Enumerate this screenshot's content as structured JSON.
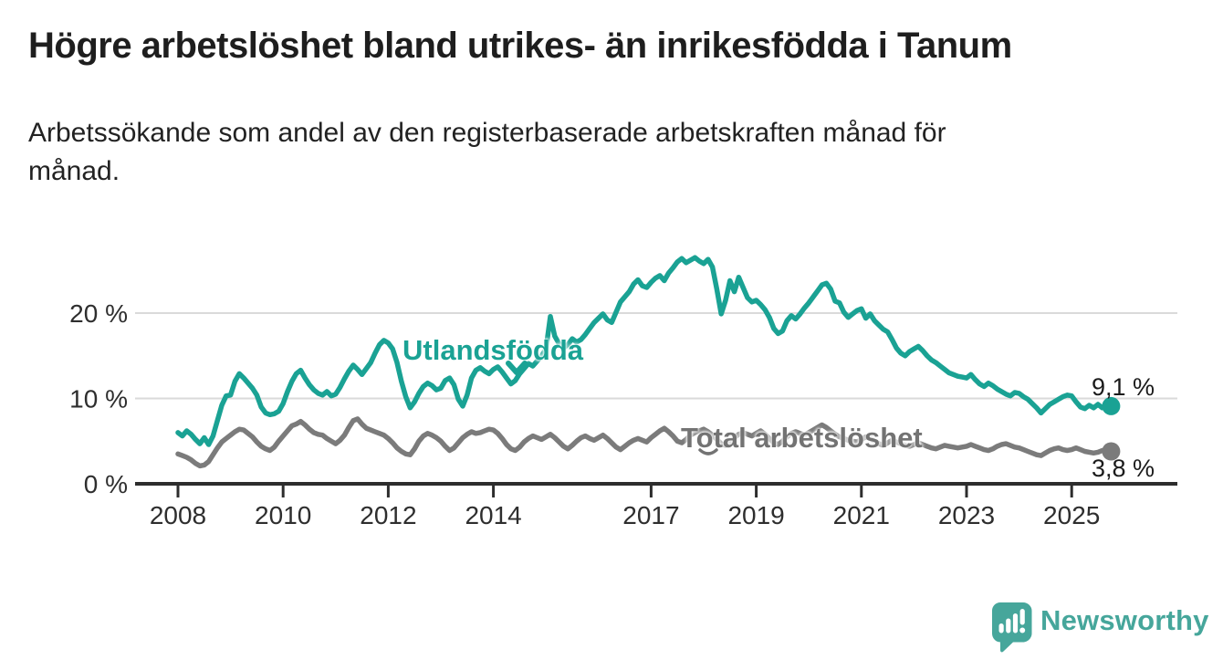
{
  "header": {
    "title": "Högre arbetslöshet bland utrikes- än inrikesfödda i Tanum",
    "subtitle": "Arbetssökande som andel av den registerbaserade arbetskraften månad för månad.",
    "subtitle_line1": "Arbetssökande som andel av den registerbaserade arbetskraften månad för",
    "subtitle_line2": "månad."
  },
  "chart_data": {
    "type": "line",
    "title": "Högre arbetslöshet bland utrikes- än inrikesfödda i Tanum",
    "unit": "percent",
    "frequency": "monthly",
    "x_start": "2008-01",
    "x_end": "2025-10",
    "x_ticks": [
      "2008",
      "2010",
      "2012",
      "2014",
      "2017",
      "2019",
      "2021",
      "2023",
      "2025"
    ],
    "x_tick_years": [
      2008,
      2010,
      2012,
      2014,
      2017,
      2019,
      2021,
      2023,
      2025
    ],
    "y_ticks": [
      "0 %",
      "10 %",
      "20 %"
    ],
    "y_tick_values": [
      0,
      10,
      20
    ],
    "ylim": [
      0,
      27.5
    ],
    "grid": "horizontal",
    "legend_position": "inline-labels",
    "axis_color": "#2d2d2d",
    "gridline_color": "#dadada",
    "series": [
      {
        "name": "Utlandsfödda",
        "color": "#1aa294",
        "end_label": "9,1 %",
        "end_value": 9.1,
        "values": [
          6.0,
          5.6,
          6.2,
          5.8,
          5.2,
          4.7,
          5.4,
          4.6,
          5.6,
          7.4,
          9.2,
          10.3,
          10.4,
          12.0,
          12.9,
          12.4,
          11.8,
          11.2,
          10.4,
          9.0,
          8.3,
          8.1,
          8.2,
          8.5,
          9.4,
          10.8,
          12.0,
          12.9,
          13.3,
          12.4,
          11.6,
          11.0,
          10.6,
          10.4,
          10.8,
          10.3,
          10.5,
          11.3,
          12.3,
          13.2,
          13.9,
          13.4,
          12.8,
          13.5,
          14.2,
          15.3,
          16.3,
          16.8,
          16.5,
          15.8,
          14.2,
          12.0,
          10.2,
          8.9,
          9.6,
          10.6,
          11.4,
          11.8,
          11.5,
          11.0,
          11.2,
          12.1,
          12.4,
          11.6,
          9.9,
          9.1,
          10.4,
          12.4,
          13.3,
          13.6,
          13.2,
          12.9,
          13.4,
          13.7,
          13.1,
          12.4,
          11.7,
          12.1,
          12.9,
          13.5,
          14.1,
          13.8,
          14.4,
          15.0,
          15.8,
          19.6,
          17.3,
          16.4,
          15.9,
          16.3,
          17.0,
          16.6,
          16.9,
          17.5,
          18.2,
          18.9,
          19.4,
          19.9,
          19.2,
          18.9,
          20.1,
          21.3,
          21.9,
          22.5,
          23.4,
          23.9,
          23.2,
          23.0,
          23.6,
          24.1,
          24.4,
          23.8,
          24.7,
          25.3,
          26.0,
          26.4,
          25.9,
          26.2,
          26.5,
          26.1,
          25.8,
          26.3,
          25.4,
          22.8,
          19.9,
          21.5,
          23.8,
          22.5,
          24.2,
          23.0,
          21.8,
          21.3,
          21.5,
          21.0,
          20.4,
          19.5,
          18.2,
          17.6,
          17.9,
          19.1,
          19.7,
          19.3,
          19.9,
          20.6,
          21.2,
          21.9,
          22.6,
          23.3,
          23.5,
          22.8,
          21.4,
          21.2,
          20.1,
          19.5,
          19.9,
          20.3,
          20.5,
          19.4,
          19.9,
          19.1,
          18.6,
          18.1,
          17.8,
          16.9,
          15.9,
          15.3,
          15.0,
          15.5,
          15.8,
          16.1,
          15.6,
          15.0,
          14.5,
          14.2,
          13.8,
          13.4,
          13.0,
          12.8,
          12.6,
          12.5,
          12.4,
          12.8,
          12.2,
          11.7,
          11.4,
          11.8,
          11.5,
          11.1,
          10.8,
          10.5,
          10.3,
          10.7,
          10.6,
          10.2,
          9.9,
          9.4,
          8.9,
          8.3,
          8.8,
          9.3,
          9.6,
          9.9,
          10.2,
          10.4,
          10.3,
          9.6,
          9.0,
          8.8,
          9.2,
          8.9,
          9.3,
          8.9,
          9.0,
          9.1
        ]
      },
      {
        "name": "Total arbetslöshet",
        "color": "#7b7b7b",
        "end_label": "3,8 %",
        "end_value": 3.8,
        "values": [
          3.5,
          3.3,
          3.1,
          2.8,
          2.4,
          2.1,
          2.2,
          2.6,
          3.4,
          4.2,
          4.9,
          5.3,
          5.7,
          6.1,
          6.4,
          6.3,
          5.9,
          5.5,
          4.9,
          4.4,
          4.1,
          3.9,
          4.3,
          5.0,
          5.6,
          6.2,
          6.8,
          7.0,
          7.3,
          6.9,
          6.4,
          6.0,
          5.8,
          5.7,
          5.3,
          5.0,
          4.7,
          5.1,
          5.7,
          6.6,
          7.4,
          7.6,
          7.0,
          6.5,
          6.3,
          6.1,
          5.9,
          5.7,
          5.3,
          4.8,
          4.2,
          3.8,
          3.5,
          3.4,
          4.1,
          5.0,
          5.6,
          5.9,
          5.7,
          5.4,
          5.0,
          4.4,
          3.9,
          4.2,
          4.8,
          5.4,
          5.8,
          6.1,
          5.9,
          6.0,
          6.2,
          6.4,
          6.3,
          5.9,
          5.3,
          4.6,
          4.1,
          3.9,
          4.3,
          4.9,
          5.3,
          5.6,
          5.4,
          5.2,
          5.5,
          5.8,
          5.4,
          4.9,
          4.4,
          4.1,
          4.5,
          5.0,
          5.4,
          5.6,
          5.3,
          5.1,
          5.4,
          5.7,
          5.3,
          4.8,
          4.3,
          4.0,
          4.4,
          4.8,
          5.1,
          5.3,
          5.1,
          4.9,
          5.4,
          5.8,
          6.2,
          6.5,
          6.1,
          5.6,
          5.0,
          4.8,
          5.2,
          5.7,
          6.0,
          6.2,
          6.4,
          6.1,
          5.7,
          5.2,
          4.7,
          4.5,
          4.9,
          5.4,
          5.8,
          6.0,
          5.8,
          5.6,
          5.9,
          6.2,
          5.8,
          5.3,
          4.8,
          4.6,
          5.0,
          5.5,
          5.9,
          6.1,
          5.9,
          5.7,
          6.0,
          6.3,
          6.6,
          6.9,
          6.6,
          6.2,
          5.8,
          5.5,
          5.3,
          5.1,
          5.0,
          4.9,
          5.2,
          5.5,
          5.3,
          5.0,
          4.7,
          4.5,
          4.8,
          5.1,
          4.9,
          4.7,
          4.5,
          4.4,
          4.6,
          4.8,
          4.6,
          4.4,
          4.2,
          4.1,
          4.3,
          4.5,
          4.4,
          4.3,
          4.2,
          4.3,
          4.4,
          4.6,
          4.4,
          4.2,
          4.0,
          3.9,
          4.1,
          4.4,
          4.6,
          4.7,
          4.5,
          4.3,
          4.2,
          4.0,
          3.8,
          3.6,
          3.4,
          3.3,
          3.6,
          3.9,
          4.1,
          4.2,
          4.0,
          3.9,
          4.0,
          4.2,
          4.0,
          3.8,
          3.7,
          3.6,
          3.7,
          3.9,
          3.8,
          3.8
        ]
      }
    ]
  },
  "branding": {
    "logo_text": "Newsworthy",
    "logo_color": "#46a69b",
    "logo_icon": "newsworthy-speech-bubble-bar-chart-icon"
  }
}
